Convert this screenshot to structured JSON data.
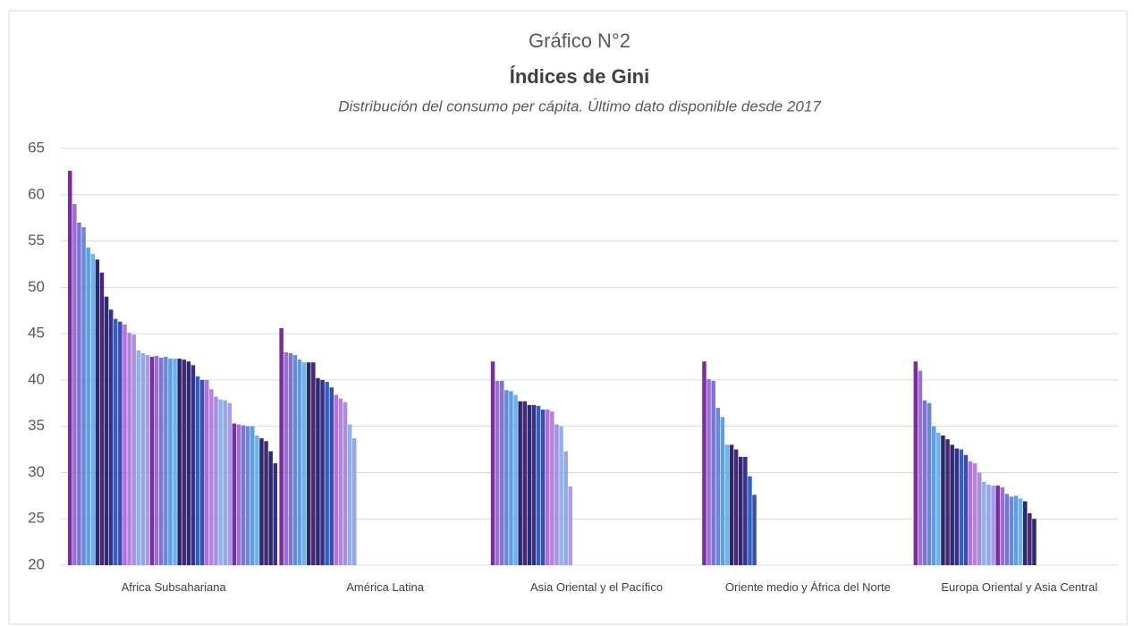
{
  "chart_data": {
    "type": "bar",
    "title": "Gráfico N°2",
    "subtitle": "Índices de Gini",
    "note": "Distribución del consumo per cápita. Último dato disponible desde 2017",
    "categories": [
      "Africa Subsahariana",
      "América Latina",
      "Asia Oriental y el Pacífico",
      "Oriente medio y África del Norte",
      "Europa Oriental y Asia Central"
    ],
    "groups": [
      [
        62.6,
        59,
        57,
        56.5,
        54.3,
        53.6,
        53,
        51.6,
        49,
        47.6,
        46.6,
        46.3,
        46,
        45.1,
        44.9,
        43.2,
        42.9,
        42.7,
        42.5,
        42.6,
        42.4,
        42.5,
        42.3,
        42.3,
        42.3,
        42.2,
        42,
        41.6,
        40.4,
        40,
        40,
        39,
        38.2,
        37.9,
        37.8,
        37.5,
        35.3,
        35.2,
        35.1,
        35,
        35,
        34,
        33.7,
        33.4,
        32.3,
        31
      ],
      [
        45.6,
        43,
        42.9,
        42.7,
        42.2,
        41.9,
        41.9,
        41.9,
        40.2,
        40,
        39.8,
        39.2,
        38.4,
        38,
        37.6,
        35.2,
        33.7
      ],
      [
        42,
        39.9,
        39.9,
        38.9,
        38.8,
        38.4,
        37.7,
        37.7,
        37.3,
        37.3,
        37.2,
        36.8,
        36.8,
        36.6,
        35.2,
        35,
        32.3,
        28.5
      ],
      [
        42,
        40.1,
        39.9,
        37,
        36,
        33,
        33,
        32.5,
        31.7,
        31.7,
        29.6,
        27.6
      ],
      [
        42,
        41,
        37.8,
        37.5,
        35,
        34.3,
        34,
        33.6,
        33,
        32.6,
        32.5,
        31.9,
        31.2,
        31,
        30,
        29,
        28.7,
        28.6,
        28.6,
        28.4,
        27.7,
        27.4,
        27.5,
        27.2,
        26.9,
        25.6,
        25
      ]
    ],
    "palette": [
      "#7b2c9e",
      "#9a6fd6",
      "#7d73d4",
      "#6a88d8",
      "#5aa0e8",
      "#6fb0f0",
      "#2c2a66",
      "#4a2678",
      "#2a2c70",
      "#3a2f88",
      "#2f62c0",
      "#3c4db0",
      "#b66fe0",
      "#b284dc",
      "#a88ee2",
      "#8fb2ec",
      "#98a6e4",
      "#a89cf0"
    ],
    "ylim": [
      20,
      65
    ],
    "yticks": [
      20,
      25,
      30,
      35,
      40,
      45,
      50,
      55,
      60,
      65
    ],
    "grid": true
  }
}
